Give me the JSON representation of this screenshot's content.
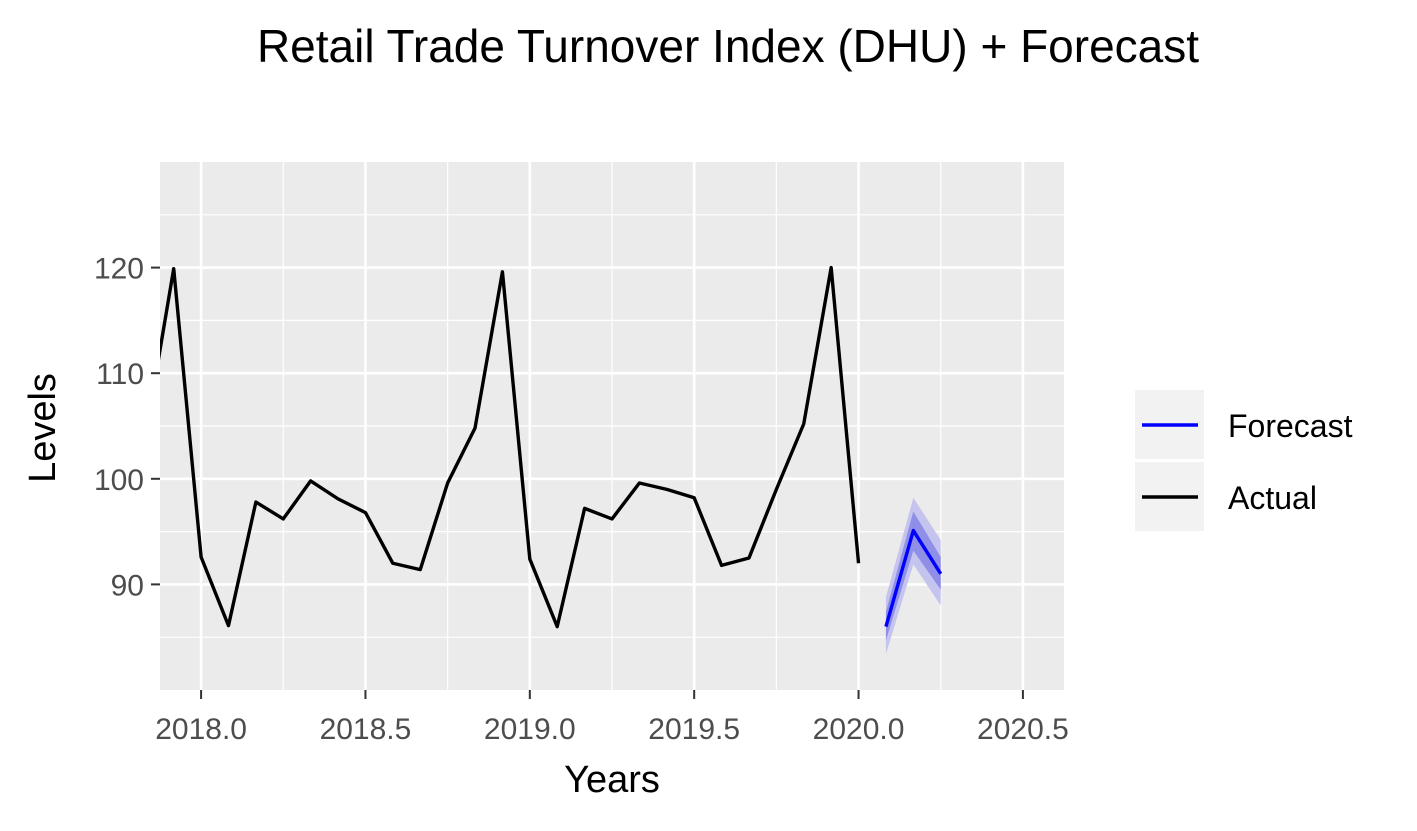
{
  "chart_data": {
    "type": "line",
    "title": "Retail Trade Turnover Index (DHU) + Forecast",
    "xlabel": "Years",
    "ylabel": "Levels",
    "xlim": [
      2017.875,
      2020.625
    ],
    "ylim": [
      80,
      130
    ],
    "x_ticks": [
      2018.0,
      2018.5,
      2019.0,
      2019.5,
      2020.0,
      2020.5
    ],
    "x_tick_labels": [
      "2018.0",
      "2018.5",
      "2019.0",
      "2019.5",
      "2020.0",
      "2020.5"
    ],
    "y_ticks": [
      90,
      100,
      110,
      120
    ],
    "y_tick_labels": [
      "90",
      "100",
      "110",
      "120"
    ],
    "grid": true,
    "legend": {
      "placement": "right",
      "entries": [
        {
          "label": "Forecast",
          "color": "#0000ff"
        },
        {
          "label": "Actual",
          "color": "#000000"
        }
      ]
    },
    "series": [
      {
        "name": "Actual",
        "color": "#000000",
        "x": [
          2017.8333,
          2017.9167,
          2018.0,
          2018.0833,
          2018.1667,
          2018.25,
          2018.3333,
          2018.4167,
          2018.5,
          2018.5833,
          2018.6667,
          2018.75,
          2018.8333,
          2018.9167,
          2019.0,
          2019.0833,
          2019.1667,
          2019.25,
          2019.3333,
          2019.4167,
          2019.5,
          2019.5833,
          2019.6667,
          2019.75,
          2019.8333,
          2019.9167,
          2020.0
        ],
        "values": [
          104.5,
          119.9,
          92.6,
          86.1,
          97.8,
          96.2,
          99.8,
          98.1,
          96.8,
          92.0,
          91.4,
          99.6,
          104.8,
          119.6,
          92.4,
          86.0,
          97.2,
          96.2,
          99.6,
          99.0,
          98.2,
          91.8,
          92.5,
          99.0,
          105.2,
          120.0,
          92.0
        ]
      },
      {
        "name": "Forecast",
        "color": "#0000ff",
        "x": [
          2020.0833,
          2020.1667,
          2020.25
        ],
        "values": [
          86.0,
          95.1,
          91.0
        ],
        "lower_80": [
          84.7,
          93.2,
          89.5
        ],
        "upper_80": [
          87.4,
          96.9,
          92.6
        ],
        "lower_95": [
          83.4,
          91.9,
          88.0
        ],
        "upper_95": [
          88.8,
          98.2,
          94.2
        ],
        "band_colors": {
          "outer": "#c4c4ef",
          "inner": "#8f8fe8"
        }
      }
    ],
    "colors": {
      "panel_background": "#ebebeb",
      "gridline": "#ffffff",
      "axis_text": "#4d4d4d",
      "title_text": "#000000"
    }
  }
}
